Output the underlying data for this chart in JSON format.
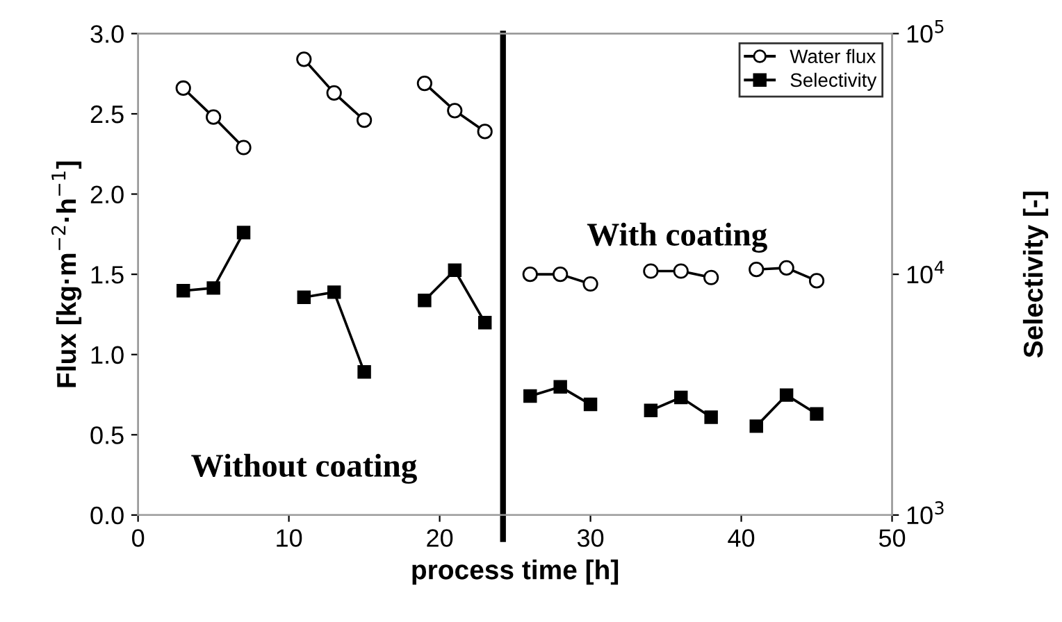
{
  "chart_data": {
    "type": "line",
    "xlabel": "process time [h]",
    "ylabel": "Flux [kg·m$^{−2}$·h$^{−1}$]",
    "y2label": "Selectivity [-]",
    "xlim": [
      0,
      50
    ],
    "xticks": [
      0,
      10,
      20,
      30,
      40,
      50
    ],
    "ylim": [
      0,
      3
    ],
    "yticks": [
      {
        "value": 0,
        "label": "0.0"
      },
      0.5,
      {
        "value": 1,
        "label": "1.0"
      },
      1.5,
      {
        "value": 2,
        "label": "2.0"
      },
      2.5,
      {
        "value": 3,
        "label": "3.0"
      }
    ],
    "y2lim": [
      1000,
      100000
    ],
    "y2ticks": [
      {
        "value": 1000,
        "label": "10$^{3}$"
      },
      {
        "value": 10000,
        "label": "10$^{4}$"
      },
      {
        "value": 100000,
        "label": "10$^{5}$"
      }
    ],
    "log": "y2",
    "grid": false,
    "legend": "top right",
    "line_style": "solid",
    "series": [
      {
        "name": "Water flux",
        "color": "#000000",
        "marker": "circle",
        "x": [
          3,
          5,
          7,
          9,
          11,
          13,
          15,
          17,
          19,
          21,
          23,
          24.5,
          26,
          28,
          30,
          32,
          34,
          36,
          38,
          39.5,
          41,
          43,
          45
        ],
        "values": [
          2.66,
          2.48,
          2.29,
          null,
          2.84,
          2.63,
          2.46,
          null,
          2.69,
          2.52,
          2.39,
          null,
          1.5,
          1.5,
          1.44,
          null,
          1.52,
          1.52,
          1.48,
          null,
          1.53,
          1.54,
          1.46
        ]
      },
      {
        "name": "Selectivity",
        "color": "#000000",
        "marker": "square",
        "axis": "y2",
        "x": [
          3,
          5,
          7,
          9,
          11,
          13,
          15,
          17,
          19,
          21,
          23,
          24.5,
          26,
          28,
          30,
          32,
          34,
          36,
          38,
          39.5,
          41,
          43,
          45
        ],
        "values": [
          8550,
          8770,
          14900,
          null,
          8030,
          8430,
          3930,
          null,
          7790,
          10400,
          6300,
          null,
          3120,
          3410,
          2880,
          null,
          2720,
          3080,
          2550,
          null,
          2340,
          3150,
          2630
        ]
      }
    ],
    "ref_lines": [
      {
        "axis": "x",
        "value": 24.2,
        "color": "#000000"
      }
    ],
    "annotations": [
      "Without coating",
      "With coating"
    ]
  }
}
